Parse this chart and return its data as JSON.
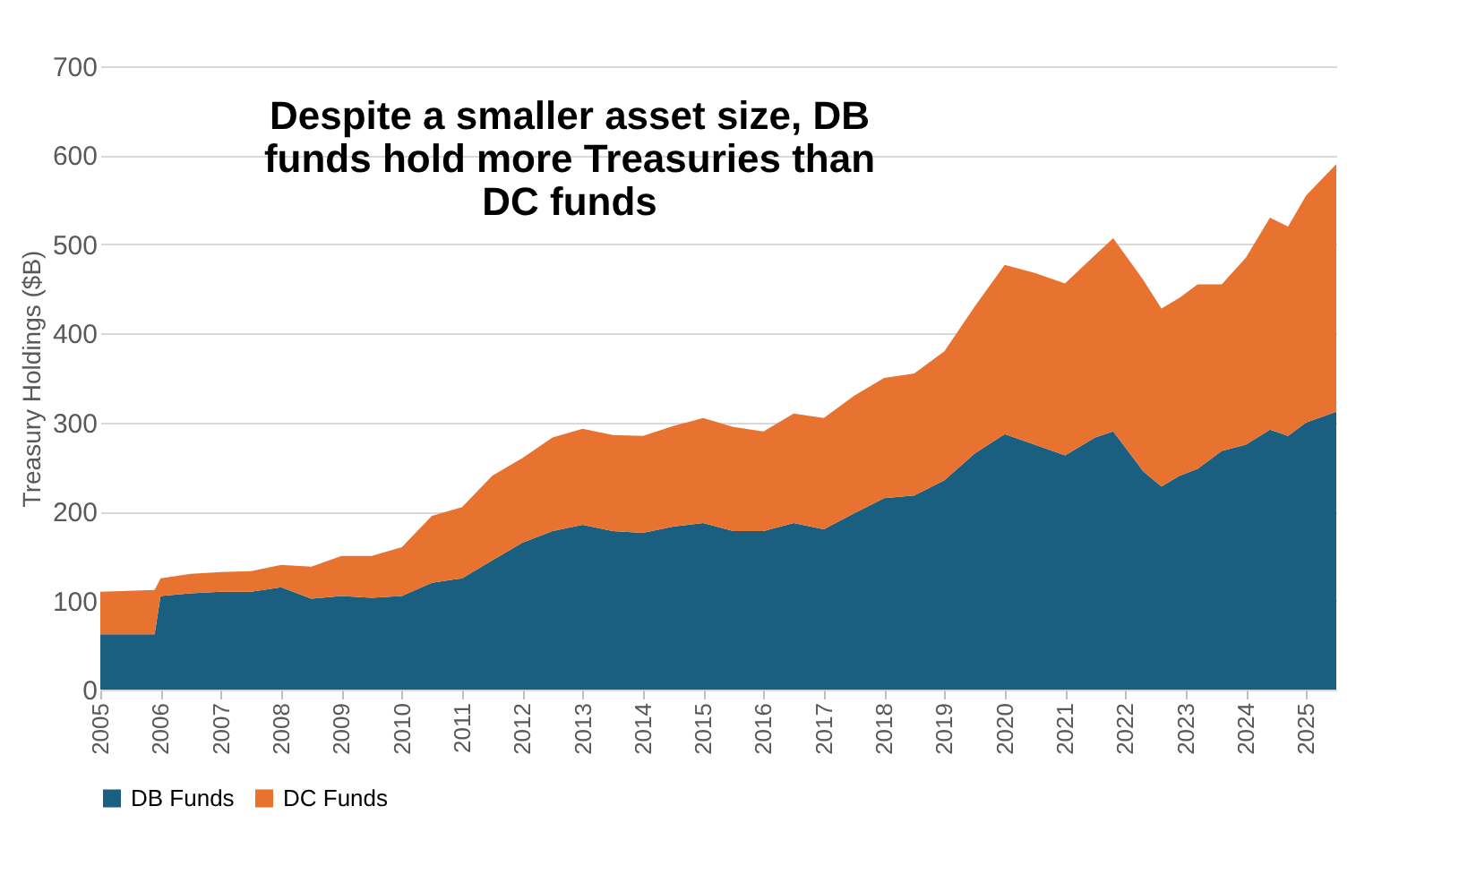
{
  "chart_data": {
    "type": "area",
    "stacked": true,
    "title": "Despite a smaller asset size, DB funds hold more Treasuries than DC funds",
    "ylabel": "Treasury Holdings ($B)",
    "x": [
      2005,
      2005.9,
      2006.0,
      2006.5,
      2007,
      2007.5,
      2008,
      2008.5,
      2009,
      2009.5,
      2010,
      2010.5,
      2011,
      2011.5,
      2012,
      2012.5,
      2013,
      2013.5,
      2014,
      2014.5,
      2015,
      2015.5,
      2016,
      2016.5,
      2017,
      2017.5,
      2018,
      2018.5,
      2019,
      2019.5,
      2020,
      2020.5,
      2021,
      2021.5,
      2021.8,
      2022.3,
      2022.6,
      2022.9,
      2023.2,
      2023.6,
      2024,
      2024.4,
      2024.7,
      2025,
      2025.5
    ],
    "series": [
      {
        "name": "DB Funds",
        "color": "#1a5e80",
        "values": [
          62,
          62,
          105,
          108,
          110,
          110,
          115,
          102,
          105,
          103,
          105,
          120,
          125,
          145,
          165,
          178,
          185,
          178,
          176,
          183,
          187,
          178,
          178,
          187,
          180,
          198,
          215,
          218,
          235,
          265,
          287,
          275,
          263,
          283,
          290,
          245,
          228,
          240,
          248,
          268,
          275,
          292,
          285,
          300,
          312
        ]
      },
      {
        "name": "DC Funds",
        "color": "#e87331",
        "values": [
          48,
          50,
          20,
          22,
          22,
          23,
          25,
          36,
          45,
          47,
          55,
          75,
          80,
          95,
          95,
          105,
          108,
          108,
          109,
          113,
          118,
          117,
          112,
          123,
          125,
          132,
          135,
          137,
          145,
          165,
          190,
          193,
          193,
          205,
          217,
          215,
          200,
          200,
          207,
          187,
          210,
          238,
          235,
          255,
          278
        ]
      }
    ],
    "xlim": [
      2005,
      2025.5
    ],
    "xticks": [
      2005,
      2006,
      2007,
      2008,
      2009,
      2010,
      2011,
      2012,
      2013,
      2014,
      2015,
      2016,
      2017,
      2018,
      2019,
      2020,
      2021,
      2022,
      2023,
      2024,
      2025
    ],
    "ylim": [
      0,
      700
    ],
    "yticks": [
      0,
      100,
      200,
      300,
      400,
      500,
      600,
      700
    ],
    "grid": "y",
    "legend": "bottom"
  }
}
